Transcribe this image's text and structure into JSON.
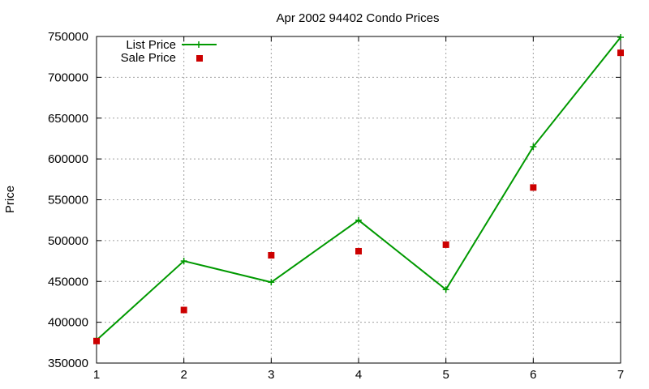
{
  "chart_data": {
    "type": "line",
    "title": "Apr 2002 94402 Condo Prices",
    "xlabel": "",
    "ylabel": "Price",
    "x": [
      1,
      2,
      3,
      4,
      5,
      6,
      7
    ],
    "xlim": [
      1,
      7
    ],
    "ylim": [
      350000,
      750000
    ],
    "xticks": [
      1,
      2,
      3,
      4,
      5,
      6,
      7
    ],
    "yticks": [
      350000,
      400000,
      450000,
      500000,
      550000,
      600000,
      650000,
      700000,
      750000
    ],
    "grid": true,
    "legend_position": "top-left",
    "series": [
      {
        "name": "List Price",
        "style": "linespoints",
        "marker": "plus",
        "color": "#009900",
        "values": [
          378000,
          475000,
          449000,
          525000,
          440000,
          615000,
          749000
        ]
      },
      {
        "name": "Sale Price",
        "style": "points",
        "marker": "square",
        "color": "#cc0000",
        "values": [
          377000,
          415000,
          482000,
          487000,
          495000,
          565000,
          730000
        ]
      }
    ]
  }
}
